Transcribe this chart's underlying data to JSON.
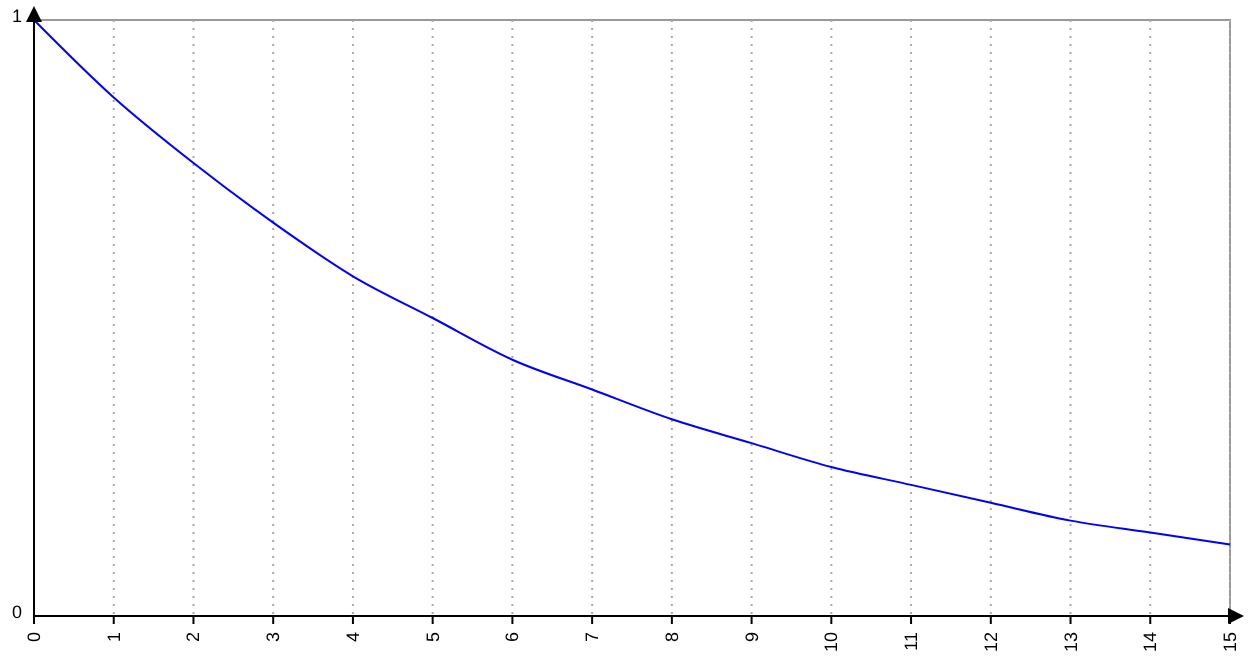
{
  "chart_data": {
    "type": "line",
    "x": [
      0,
      1,
      2,
      3,
      4,
      5,
      6,
      7,
      8,
      9,
      10,
      11,
      12,
      13,
      14,
      15
    ],
    "series": [
      {
        "color": "#0000ff",
        "values": [
          1,
          0.87,
          0.76,
          0.66,
          0.57,
          0.5,
          0.43,
          0.38,
          0.33,
          0.29,
          0.25,
          0.22,
          0.19,
          0.16,
          0.14,
          0.12
        ]
      }
    ],
    "xlim": [
      0,
      15
    ],
    "xticks": [
      0,
      1,
      2,
      3,
      4,
      5,
      6,
      7,
      8,
      9,
      10,
      11,
      12,
      13,
      14,
      15
    ],
    "ylim": [
      0,
      1
    ],
    "yticks": [
      0,
      1
    ],
    "grid": "x",
    "marker": "none",
    "line_style": "solid"
  }
}
